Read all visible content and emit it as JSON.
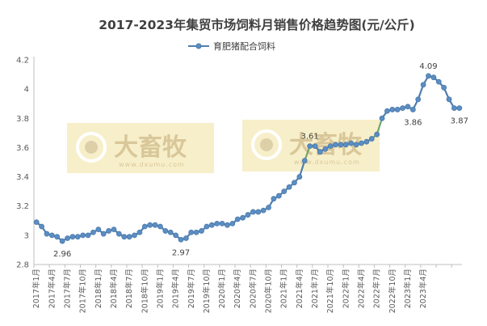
{
  "chart_data": {
    "type": "line",
    "title": "2017-2023年集贸市场饲料月销售价格趋势图(元/公斤)",
    "series": [
      {
        "name": "育肥猪配合饲料",
        "values": [
          3.09,
          3.06,
          3.01,
          3.0,
          2.99,
          2.96,
          2.98,
          2.99,
          2.99,
          3.0,
          3.0,
          3.02,
          3.04,
          3.01,
          3.03,
          3.04,
          3.01,
          2.99,
          2.99,
          3.0,
          3.02,
          3.06,
          3.07,
          3.07,
          3.06,
          3.03,
          3.02,
          3.0,
          2.97,
          2.98,
          3.02,
          3.02,
          3.03,
          3.06,
          3.07,
          3.08,
          3.08,
          3.07,
          3.08,
          3.11,
          3.12,
          3.14,
          3.16,
          3.16,
          3.17,
          3.19,
          3.25,
          3.27,
          3.3,
          3.33,
          3.36,
          3.4,
          3.51,
          3.61,
          3.61,
          3.57,
          3.59,
          3.61,
          3.62,
          3.62,
          3.62,
          3.63,
          3.62,
          3.63,
          3.64,
          3.66,
          3.69,
          3.8,
          3.85,
          3.86,
          3.86,
          3.87,
          3.88,
          3.86,
          3.93,
          4.03,
          4.09,
          4.08,
          4.05,
          4.01,
          3.93,
          3.87,
          3.87
        ]
      }
    ],
    "x": [
      "2017年1月",
      "2017年2月",
      "2017年3月",
      "2017年4月",
      "2017年5月",
      "2017年6月",
      "2017年7月",
      "2017年8月",
      "2017年9月",
      "2017年10月",
      "2017年11月",
      "2017年12月",
      "2018年1月",
      "2018年2月",
      "2018年3月",
      "2018年4月",
      "2018年5月",
      "2018年6月",
      "2018年7月",
      "2018年8月",
      "2018年9月",
      "2018年10月",
      "2018年11月",
      "2018年12月",
      "2019年1月",
      "2019年2月",
      "2019年3月",
      "2019年4月",
      "2019年5月",
      "2019年6月",
      "2019年7月",
      "2019年8月",
      "2019年9月",
      "2019年10月",
      "2019年11月",
      "2019年12月",
      "2020年1月",
      "2020年2月",
      "2020年3月",
      "2020年4月",
      "2020年5月",
      "2020年6月",
      "2020年7月",
      "2020年8月",
      "2020年9月",
      "2020年10月",
      "2020年11月",
      "2020年12月",
      "2021年1月",
      "2021年2月",
      "2021年3月",
      "2021年4月",
      "2021年5月",
      "2021年6月",
      "2021年7月",
      "2021年8月",
      "2021年9月",
      "2021年10月",
      "2021年11月",
      "2021年12月",
      "2022年1月",
      "2022年2月",
      "2022年3月",
      "2022年4月",
      "2022年5月",
      "2022年6月",
      "2022年7月",
      "2022年8月",
      "2022年9月",
      "2022年10月",
      "2022年11月",
      "2022年12月",
      "2023年1月",
      "2023年2月",
      "2023年3月",
      "2023年4月",
      "2023年5月",
      "2023年6月",
      "2023年7月",
      "2023年8月",
      "2023年9月",
      "2023年10月",
      "2023年11月"
    ],
    "x_tick_labels": [
      "2017年1月",
      "2017年4月",
      "2017年7月",
      "2017年10月",
      "2018年1月",
      "2018年4月",
      "2018年7月",
      "2018年10月",
      "2019年1月",
      "2019年4月",
      "2019年7月",
      "2019年10月",
      "2020年1月",
      "2020年4月",
      "2020年7月",
      "2020年10月",
      "2021年1月",
      "2021年4月",
      "2021年7月",
      "2021年10月",
      "2022年1月",
      "2022年4月",
      "2022年7月",
      "2022年10月",
      "2023年1月",
      "2023年4月"
    ],
    "y_ticks": [
      "2.8",
      "3",
      "3.2",
      "3.4",
      "3.6",
      "3.8",
      "4",
      "4.2"
    ],
    "ylim": [
      2.8,
      4.2
    ],
    "xlabel": "",
    "ylabel": "",
    "grid": false,
    "legend": "top-center",
    "annotations": [
      {
        "index": 5,
        "text": "2.96",
        "pos": "below"
      },
      {
        "index": 28,
        "text": "2.97",
        "pos": "below"
      },
      {
        "index": 53,
        "text": "3.61",
        "pos": "above"
      },
      {
        "index": 76,
        "text": "4.09",
        "pos": "above"
      },
      {
        "index": 73,
        "text": "3.86",
        "pos": "below"
      },
      {
        "index": 82,
        "text": "3.87",
        "pos": "below"
      }
    ],
    "colors": {
      "line": "#4f7fae",
      "highlight_line": "#70a56d",
      "marker_fill": "#5b8ec4",
      "marker_stroke": "#4a78a8",
      "axis": "#bfbfbf",
      "text": "#404040",
      "tick_text": "#595959"
    },
    "highlight_segments": [
      [
        52,
        54
      ],
      [
        65,
        67
      ]
    ],
    "watermark": {
      "brand_text": "大畜牧",
      "url_text": "www.dxumu.com",
      "color": "#f7efc9"
    }
  }
}
